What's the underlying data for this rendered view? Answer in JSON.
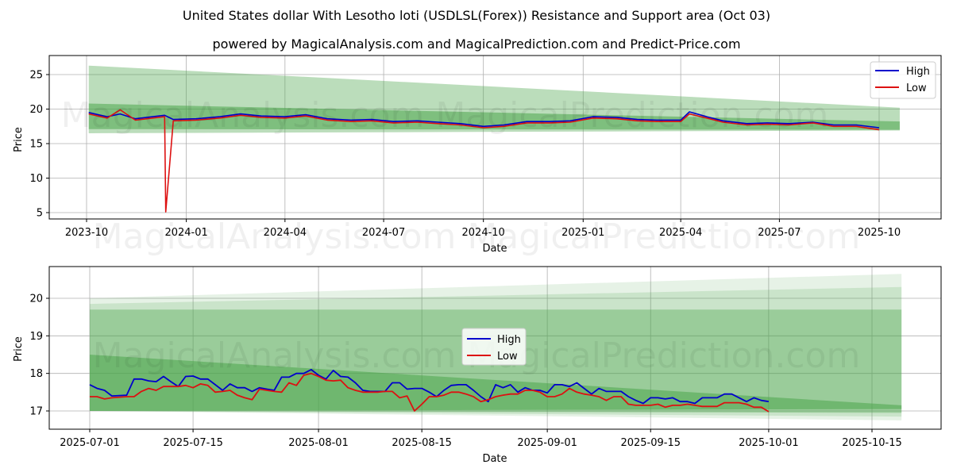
{
  "title": "United States dollar With Lesotho loti (USDLSL(Forex)) Resistance and Support area (Oct 03)",
  "subtitle": "powered by MagicalAnalysis.com and MagicalPrediction.com and Predict-Price.com",
  "watermarks": {
    "top_upper": "MagicalAnalysis.com   MagicalPrediction.com",
    "top_lower": "MagicalAnalysis.com   MagicalPrediction.com",
    "bottom": "MagicalAnalysis.com   MagicalPrediction.com"
  },
  "colors": {
    "high": "#0000cc",
    "low": "#dd1111",
    "band": "#4ca64c"
  },
  "chart_data": [
    {
      "type": "line",
      "name": "full-history",
      "xlabel": "Date",
      "ylabel": "Price",
      "x_ticks": [
        "2023-10",
        "2024-01",
        "2024-04",
        "2024-07",
        "2024-10",
        "2025-01",
        "2025-04",
        "2025-07",
        "2025-10"
      ],
      "y_ticks": [
        "5",
        "10",
        "15",
        "20",
        "25"
      ],
      "ylim": [
        4,
        27.5
      ],
      "legend": [
        "High",
        "Low"
      ],
      "legend_position": "top-right",
      "grid": true,
      "series": [
        {
          "name": "High",
          "x": [
            "2023-10-03",
            "2023-10-20",
            "2023-11-01",
            "2023-11-15",
            "2023-12-01",
            "2023-12-12",
            "2023-12-20",
            "2024-01-10",
            "2024-02-01",
            "2024-02-20",
            "2024-03-10",
            "2024-04-01",
            "2024-04-20",
            "2024-05-10",
            "2024-06-01",
            "2024-06-20",
            "2024-07-10",
            "2024-08-01",
            "2024-08-20",
            "2024-09-10",
            "2024-10-01",
            "2024-10-20",
            "2024-11-10",
            "2024-12-01",
            "2024-12-20",
            "2025-01-10",
            "2025-02-01",
            "2025-02-20",
            "2025-03-10",
            "2025-04-01",
            "2025-04-09",
            "2025-04-25",
            "2025-05-10",
            "2025-06-01",
            "2025-06-20",
            "2025-07-10",
            "2025-08-01",
            "2025-08-20",
            "2025-09-10",
            "2025-10-01"
          ],
          "values": [
            19.5,
            18.9,
            19.3,
            18.6,
            18.9,
            19.1,
            18.5,
            18.6,
            18.9,
            19.3,
            19.0,
            18.9,
            19.2,
            18.6,
            18.4,
            18.5,
            18.2,
            18.3,
            18.1,
            17.9,
            17.5,
            17.7,
            18.2,
            18.2,
            18.3,
            18.9,
            18.8,
            18.5,
            18.4,
            18.4,
            19.6,
            18.9,
            18.3,
            17.9,
            18.0,
            17.9,
            18.1,
            17.7,
            17.7,
            17.3
          ]
        },
        {
          "name": "Low",
          "x": [
            "2023-10-03",
            "2023-10-20",
            "2023-11-01",
            "2023-11-15",
            "2023-12-01",
            "2023-12-12",
            "2023-12-13",
            "2023-12-20",
            "2024-01-10",
            "2024-02-01",
            "2024-02-20",
            "2024-03-10",
            "2024-04-01",
            "2024-04-20",
            "2024-05-10",
            "2024-06-01",
            "2024-06-20",
            "2024-07-10",
            "2024-08-01",
            "2024-08-20",
            "2024-09-10",
            "2024-10-01",
            "2024-10-20",
            "2024-11-10",
            "2024-12-01",
            "2024-12-20",
            "2025-01-10",
            "2025-02-01",
            "2025-02-20",
            "2025-03-10",
            "2025-04-01",
            "2025-04-09",
            "2025-04-25",
            "2025-05-10",
            "2025-06-01",
            "2025-06-20",
            "2025-07-10",
            "2025-08-01",
            "2025-08-20",
            "2025-09-10",
            "2025-10-01"
          ],
          "values": [
            19.3,
            18.7,
            19.9,
            18.4,
            18.7,
            18.9,
            5.1,
            18.3,
            18.4,
            18.7,
            19.1,
            18.8,
            18.7,
            19.0,
            18.4,
            18.2,
            18.3,
            18.0,
            18.1,
            17.9,
            17.7,
            17.3,
            17.5,
            18.0,
            18.0,
            18.1,
            18.7,
            18.6,
            18.3,
            18.2,
            18.2,
            19.3,
            18.7,
            18.1,
            17.7,
            17.8,
            17.7,
            18.0,
            17.5,
            17.5,
            17.0
          ]
        }
      ],
      "bands": [
        {
          "x": [
            "2023-10-03",
            "2025-10-20"
          ],
          "upper": [
            26.3,
            20.2
          ],
          "lower": [
            16.5,
            16.9
          ]
        },
        {
          "x": [
            "2023-10-03",
            "2025-10-20"
          ],
          "upper": [
            20.8,
            18.2
          ],
          "lower": [
            17.1,
            17.0
          ]
        }
      ]
    },
    {
      "type": "line",
      "name": "recent",
      "xlabel": "Date",
      "ylabel": "Price",
      "x_ticks": [
        "2025-07-01",
        "2025-07-15",
        "2025-08-01",
        "2025-08-15",
        "2025-09-01",
        "2025-09-15",
        "2025-10-01",
        "2025-10-15"
      ],
      "y_ticks": [
        "17",
        "18",
        "19",
        "20"
      ],
      "ylim": [
        16.5,
        20.8
      ],
      "legend": [
        "High",
        "Low"
      ],
      "legend_position": "center",
      "grid": true,
      "series": [
        {
          "name": "High",
          "x": [
            0,
            1,
            2,
            3,
            5,
            6,
            7,
            8,
            9,
            10,
            11,
            12,
            13,
            14,
            15,
            16,
            17,
            18,
            19,
            20,
            21,
            22,
            23,
            24,
            25,
            26,
            27,
            28,
            29,
            30,
            31,
            32,
            33,
            34,
            35,
            36,
            37,
            38,
            39,
            40,
            41,
            42,
            43,
            44,
            45,
            46,
            47,
            48,
            49,
            50,
            51,
            52,
            53,
            54,
            55,
            56,
            57,
            58,
            59,
            60,
            61,
            62,
            63,
            64,
            65,
            66,
            67,
            68,
            69,
            70,
            71,
            72,
            73,
            74,
            75,
            76,
            77,
            78,
            79,
            80,
            81,
            82,
            83,
            84,
            85,
            86,
            87,
            88,
            89,
            90,
            91,
            92
          ],
          "values": [
            17.7,
            17.6,
            17.55,
            17.4,
            17.42,
            17.85,
            17.85,
            17.8,
            17.78,
            17.92,
            17.78,
            17.65,
            17.92,
            17.93,
            17.85,
            17.85,
            17.7,
            17.55,
            17.72,
            17.62,
            17.62,
            17.52,
            17.62,
            17.58,
            17.55,
            17.9,
            17.9,
            18.0,
            18.0,
            18.1,
            17.95,
            17.85,
            18.08,
            17.92,
            17.9,
            17.75,
            17.55,
            17.52,
            17.52,
            17.52,
            17.75,
            17.75,
            17.58,
            17.6,
            17.6,
            17.5,
            17.38,
            17.55,
            17.68,
            17.7,
            17.7,
            17.55,
            17.38,
            17.25,
            17.7,
            17.62,
            17.7,
            17.5,
            17.62,
            17.55,
            17.55,
            17.48,
            17.7,
            17.7,
            17.65,
            17.75,
            17.6,
            17.45,
            17.6,
            17.52,
            17.52,
            17.52,
            17.38,
            17.28,
            17.2,
            17.35,
            17.35,
            17.32,
            17.35,
            17.25,
            17.25,
            17.2,
            17.35,
            17.35,
            17.35,
            17.45,
            17.45,
            17.35,
            17.25,
            17.35,
            17.28,
            17.25
          ]
        },
        {
          "name": "Low",
          "x": [
            0,
            1,
            2,
            3,
            5,
            6,
            7,
            8,
            9,
            10,
            11,
            12,
            13,
            14,
            15,
            16,
            17,
            18,
            19,
            20,
            21,
            22,
            23,
            24,
            25,
            26,
            27,
            28,
            29,
            30,
            31,
            32,
            33,
            34,
            35,
            36,
            37,
            38,
            39,
            40,
            41,
            42,
            43,
            44,
            45,
            46,
            47,
            48,
            49,
            50,
            51,
            52,
            53,
            54,
            55,
            56,
            57,
            58,
            59,
            60,
            61,
            62,
            63,
            64,
            65,
            66,
            67,
            68,
            69,
            70,
            71,
            72,
            73,
            74,
            75,
            76,
            77,
            78,
            79,
            80,
            81,
            82,
            83,
            84,
            85,
            86,
            87,
            88,
            89,
            90,
            91,
            92
          ],
          "values": [
            17.38,
            17.38,
            17.32,
            17.35,
            17.38,
            17.38,
            17.52,
            17.6,
            17.55,
            17.65,
            17.65,
            17.65,
            17.68,
            17.62,
            17.72,
            17.68,
            17.5,
            17.52,
            17.55,
            17.42,
            17.35,
            17.3,
            17.58,
            17.55,
            17.52,
            17.5,
            17.75,
            17.68,
            17.95,
            18.0,
            17.92,
            17.82,
            17.8,
            17.82,
            17.62,
            17.55,
            17.5,
            17.5,
            17.5,
            17.52,
            17.52,
            17.35,
            17.4,
            17.0,
            17.18,
            17.38,
            17.38,
            17.42,
            17.5,
            17.5,
            17.45,
            17.38,
            17.25,
            17.3,
            17.38,
            17.42,
            17.45,
            17.45,
            17.55,
            17.55,
            17.5,
            17.38,
            17.38,
            17.45,
            17.6,
            17.5,
            17.45,
            17.42,
            17.38,
            17.28,
            17.38,
            17.38,
            17.18,
            17.15,
            17.15,
            17.15,
            17.18,
            17.1,
            17.15,
            17.15,
            17.18,
            17.15,
            17.12,
            17.12,
            17.12,
            17.22,
            17.22,
            17.22,
            17.18,
            17.1,
            17.1,
            16.98
          ]
        }
      ],
      "bands": [
        {
          "x": [
            "2025-07-01",
            "2025-10-19"
          ],
          "upper": [
            20.0,
            20.65
          ],
          "lower": [
            17.0,
            16.75
          ]
        },
        {
          "x": [
            "2025-07-01",
            "2025-10-19"
          ],
          "upper": [
            19.85,
            20.3
          ],
          "lower": [
            17.0,
            16.85
          ]
        },
        {
          "x": [
            "2025-07-01",
            "2025-10-19"
          ],
          "upper": [
            19.7,
            19.7
          ],
          "lower": [
            17.0,
            16.95
          ]
        },
        {
          "x": [
            "2025-07-01",
            "2025-10-19"
          ],
          "upper": [
            18.5,
            17.15
          ],
          "lower": [
            17.0,
            17.05
          ]
        }
      ]
    }
  ]
}
